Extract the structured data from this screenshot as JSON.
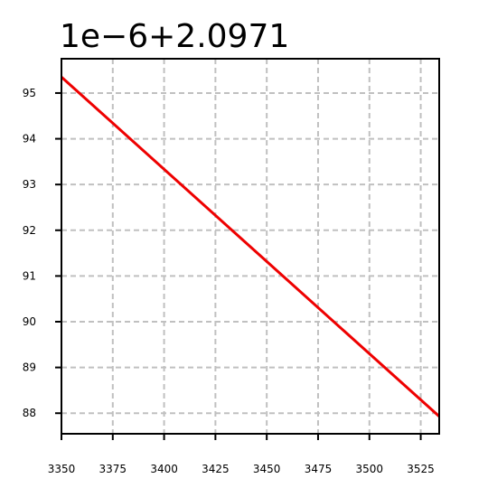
{
  "chart_data": {
    "type": "line",
    "offset_text": "1e−6+2.0971",
    "xlim": [
      3350,
      3534
    ],
    "ylim": [
      87.55,
      95.75
    ],
    "x_ticks": [
      3350,
      3375,
      3400,
      3425,
      3450,
      3475,
      3500,
      3525
    ],
    "y_ticks": [
      88,
      89,
      90,
      91,
      92,
      93,
      94,
      95
    ],
    "grid": true,
    "grid_style": "dashed",
    "series": [
      {
        "color": "#ee0000",
        "x": [
          3350,
          3534
        ],
        "y": [
          95.35,
          87.93
        ]
      }
    ],
    "colors": {
      "line": "#ee0000",
      "grid": "#c0c0c0",
      "axes": "#000000"
    }
  }
}
